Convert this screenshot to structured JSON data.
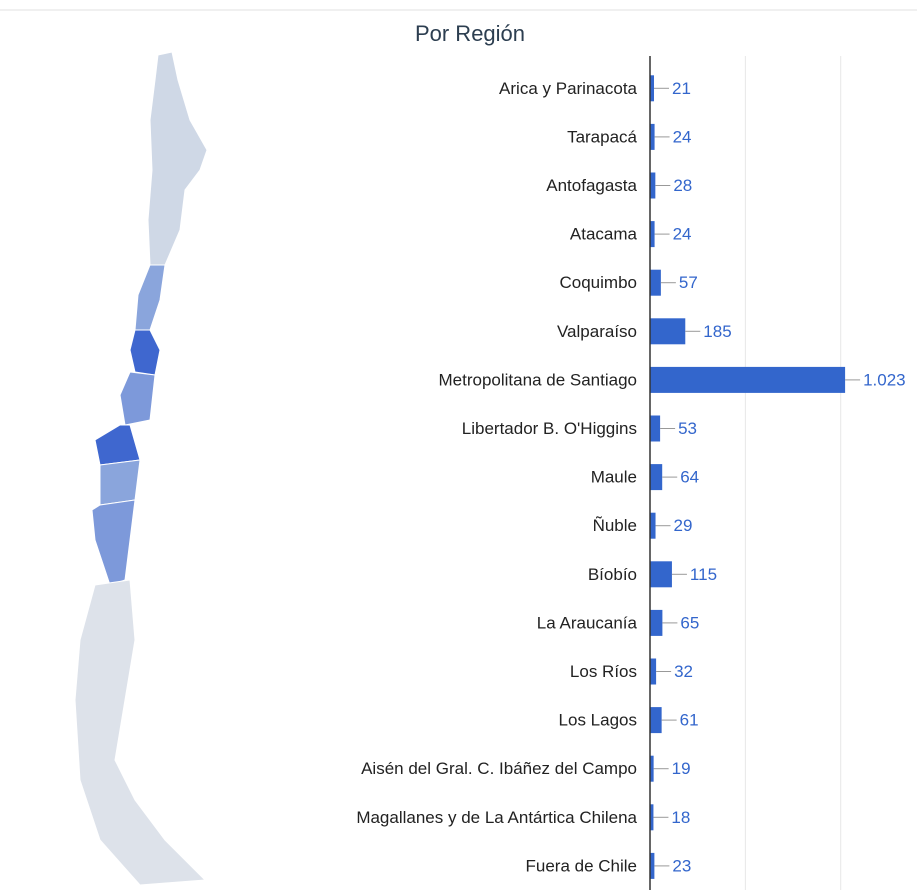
{
  "chart_data": {
    "type": "bar",
    "orientation": "horizontal",
    "title": "Por Región",
    "categories": [
      "Arica y Parinacota",
      "Tarapacá",
      "Antofagasta",
      "Atacama",
      "Coquimbo",
      "Valparaíso",
      "Metropolitana de Santiago",
      "Libertador B. O'Higgins",
      "Maule",
      "Ñuble",
      "Bíobío",
      "La Araucanía",
      "Los Ríos",
      "Los Lagos",
      "Aisén del Gral. C. Ibáñez del Campo",
      "Magallanes y de La Antártica Chilena",
      "Fuera de Chile"
    ],
    "values": [
      21,
      24,
      28,
      24,
      57,
      185,
      1023,
      53,
      64,
      29,
      115,
      65,
      32,
      61,
      19,
      18,
      23
    ],
    "value_labels": [
      "21",
      "24",
      "28",
      "24",
      "57",
      "185",
      "1.023",
      "53",
      "64",
      "29",
      "115",
      "65",
      "32",
      "61",
      "19",
      "18",
      "23"
    ],
    "color": "#3366cc",
    "xlim": [
      0,
      1400
    ],
    "grid_values": [
      500,
      1000
    ]
  }
}
